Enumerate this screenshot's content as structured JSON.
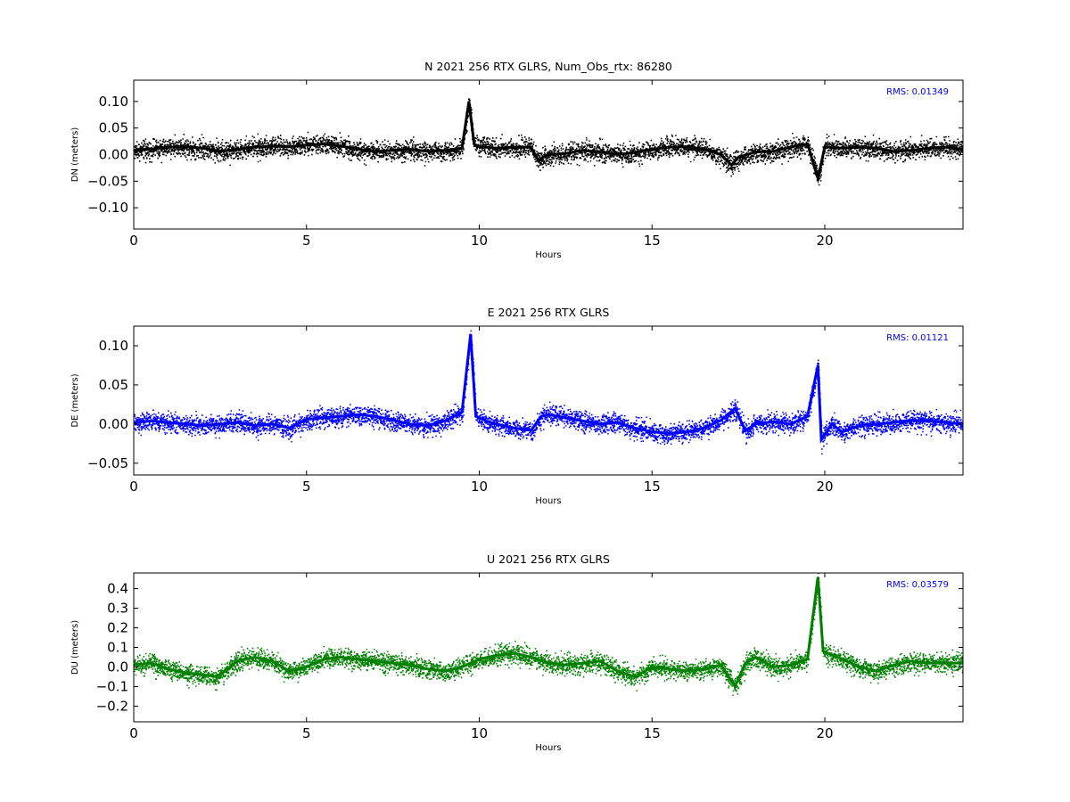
{
  "chart_data": [
    {
      "type": "scatter",
      "title": "N 2021 256 RTX  GLRS, Num_Obs_rtx: 86280",
      "xlabel": "Hours",
      "ylabel": "DN (meters)",
      "rms_label": "RMS:  0.01349",
      "color": "#000000",
      "xlim": [
        0,
        24
      ],
      "ylim": [
        -0.14,
        0.14
      ],
      "xticks": [
        0,
        5,
        10,
        15,
        20
      ],
      "xtick_labels": [
        "0",
        "5",
        "10",
        "15",
        "20"
      ],
      "yticks": [
        -0.1,
        -0.05,
        0.0,
        0.05,
        0.1
      ],
      "ytick_labels": [
        "−0.10",
        "−0.05",
        "0.00",
        "0.05",
        "0.10"
      ],
      "series": [
        {
          "points": [
            [
              0,
              0.008
            ],
            [
              0.5,
              0.01
            ],
            [
              1,
              0.014
            ],
            [
              1.5,
              0.015
            ],
            [
              2,
              0.012
            ],
            [
              2.5,
              0.006
            ],
            [
              3,
              0.01
            ],
            [
              3.5,
              0.014
            ],
            [
              4,
              0.016
            ],
            [
              4.5,
              0.015
            ],
            [
              5,
              0.018
            ],
            [
              5.5,
              0.02
            ],
            [
              6,
              0.016
            ],
            [
              6.5,
              0.01
            ],
            [
              7,
              0.006
            ],
            [
              7.5,
              0.008
            ],
            [
              8,
              0.01
            ],
            [
              8.5,
              0.006
            ],
            [
              9,
              0.008
            ],
            [
              9.5,
              0.012
            ],
            [
              9.7,
              0.1
            ],
            [
              9.85,
              0.02
            ],
            [
              10,
              0.015
            ],
            [
              10.5,
              0.012
            ],
            [
              11,
              0.014
            ],
            [
              11.5,
              0.014
            ],
            [
              11.7,
              -0.01
            ],
            [
              12,
              0.0
            ],
            [
              12.5,
              0.002
            ],
            [
              13,
              0.008
            ],
            [
              13.5,
              0.005
            ],
            [
              14,
              0.0
            ],
            [
              14.5,
              0.004
            ],
            [
              15,
              0.01
            ],
            [
              15.5,
              0.014
            ],
            [
              16,
              0.015
            ],
            [
              16.5,
              0.01
            ],
            [
              17,
              0.0
            ],
            [
              17.3,
              -0.02
            ],
            [
              17.5,
              -0.005
            ],
            [
              18,
              0.005
            ],
            [
              18.5,
              0.006
            ],
            [
              19,
              0.014
            ],
            [
              19.5,
              0.02
            ],
            [
              19.8,
              -0.045
            ],
            [
              20,
              0.015
            ],
            [
              20.5,
              0.012
            ],
            [
              21,
              0.014
            ],
            [
              21.5,
              0.012
            ],
            [
              22,
              0.006
            ],
            [
              22.5,
              0.008
            ],
            [
              23,
              0.012
            ],
            [
              23.5,
              0.014
            ],
            [
              24,
              0.01
            ]
          ]
        }
      ]
    },
    {
      "type": "scatter",
      "title": "E 2021 256 RTX  GLRS",
      "xlabel": "Hours",
      "ylabel": "DE (meters)",
      "rms_label": "RMS:  0.01121",
      "color": "#0000ff",
      "xlim": [
        0,
        24
      ],
      "ylim": [
        -0.065,
        0.125
      ],
      "xticks": [
        0,
        5,
        10,
        15,
        20
      ],
      "xtick_labels": [
        "0",
        "5",
        "10",
        "15",
        "20"
      ],
      "yticks": [
        -0.05,
        0.0,
        0.05,
        0.1
      ],
      "ytick_labels": [
        "−0.05",
        "0.00",
        "0.05",
        "0.10"
      ],
      "series": [
        {
          "points": [
            [
              0,
              0.002
            ],
            [
              0.5,
              0.004
            ],
            [
              1,
              0.002
            ],
            [
              1.5,
              0.0
            ],
            [
              2,
              -0.002
            ],
            [
              2.5,
              0.0
            ],
            [
              3,
              0.002
            ],
            [
              3.5,
              -0.002
            ],
            [
              4,
              0.0
            ],
            [
              4.5,
              -0.005
            ],
            [
              5,
              0.006
            ],
            [
              5.5,
              0.008
            ],
            [
              6,
              0.01
            ],
            [
              6.5,
              0.012
            ],
            [
              7,
              0.01
            ],
            [
              7.5,
              0.005
            ],
            [
              8,
              0.0
            ],
            [
              8.5,
              -0.002
            ],
            [
              9,
              0.004
            ],
            [
              9.5,
              0.015
            ],
            [
              9.75,
              0.115
            ],
            [
              9.9,
              0.01
            ],
            [
              10.2,
              0.004
            ],
            [
              10.5,
              0.0
            ],
            [
              11,
              -0.005
            ],
            [
              11.5,
              -0.008
            ],
            [
              11.8,
              0.01
            ],
            [
              12,
              0.012
            ],
            [
              12.5,
              0.008
            ],
            [
              13,
              0.004
            ],
            [
              13.5,
              0.0
            ],
            [
              14,
              0.002
            ],
            [
              14.5,
              -0.005
            ],
            [
              15,
              -0.01
            ],
            [
              15.5,
              -0.012
            ],
            [
              16,
              -0.01
            ],
            [
              16.5,
              -0.005
            ],
            [
              17,
              0.005
            ],
            [
              17.4,
              0.02
            ],
            [
              17.7,
              -0.008
            ],
            [
              18,
              0.0
            ],
            [
              18.5,
              0.003
            ],
            [
              19,
              0.0
            ],
            [
              19.5,
              0.01
            ],
            [
              19.8,
              0.075
            ],
            [
              19.9,
              -0.02
            ],
            [
              20.2,
              0.0
            ],
            [
              20.5,
              -0.01
            ],
            [
              21,
              -0.002
            ],
            [
              21.5,
              0.0
            ],
            [
              22,
              0.002
            ],
            [
              22.5,
              0.005
            ],
            [
              23,
              0.004
            ],
            [
              23.5,
              0.002
            ],
            [
              24,
              0.0
            ]
          ]
        }
      ]
    },
    {
      "type": "scatter",
      "title": "U 2021 256 RTX  GLRS",
      "xlabel": "Hours",
      "ylabel": "DU (meters)",
      "rms_label": "RMS:  0.03579",
      "color": "#008000",
      "xlim": [
        0,
        24
      ],
      "ylim": [
        -0.28,
        0.48
      ],
      "xticks": [
        0,
        5,
        10,
        15,
        20
      ],
      "xtick_labels": [
        "0",
        "5",
        "10",
        "15",
        "20"
      ],
      "yticks": [
        -0.2,
        -0.1,
        0.0,
        0.1,
        0.2,
        0.3,
        0.4
      ],
      "ytick_labels": [
        "−0.2",
        "−0.1",
        "0.0",
        "0.1",
        "0.2",
        "0.3",
        "0.4"
      ],
      "series": [
        {
          "points": [
            [
              0,
              0.01
            ],
            [
              0.5,
              0.02
            ],
            [
              1,
              -0.01
            ],
            [
              1.5,
              -0.03
            ],
            [
              2,
              -0.04
            ],
            [
              2.4,
              -0.05
            ],
            [
              3,
              0.03
            ],
            [
              3.5,
              0.05
            ],
            [
              4,
              0.03
            ],
            [
              4.5,
              -0.02
            ],
            [
              5,
              0.0
            ],
            [
              5.5,
              0.04
            ],
            [
              6,
              0.05
            ],
            [
              6.5,
              0.04
            ],
            [
              7,
              0.03
            ],
            [
              7.5,
              0.02
            ],
            [
              8,
              0.01
            ],
            [
              8.5,
              -0.01
            ],
            [
              9,
              -0.02
            ],
            [
              9.5,
              0.0
            ],
            [
              10,
              0.04
            ],
            [
              10.5,
              0.06
            ],
            [
              11,
              0.07
            ],
            [
              11.5,
              0.05
            ],
            [
              12,
              0.02
            ],
            [
              12.5,
              0.01
            ],
            [
              13,
              0.02
            ],
            [
              13.5,
              0.03
            ],
            [
              14,
              -0.02
            ],
            [
              14.5,
              -0.05
            ],
            [
              15,
              0.0
            ],
            [
              15.5,
              -0.01
            ],
            [
              16,
              -0.02
            ],
            [
              16.5,
              -0.01
            ],
            [
              17,
              0.01
            ],
            [
              17.4,
              -0.1
            ],
            [
              17.7,
              0.02
            ],
            [
              18,
              0.05
            ],
            [
              18.5,
              0.0
            ],
            [
              19,
              0.01
            ],
            [
              19.5,
              0.04
            ],
            [
              19.8,
              0.46
            ],
            [
              19.95,
              0.08
            ],
            [
              20.5,
              0.04
            ],
            [
              21,
              0.0
            ],
            [
              21.5,
              -0.02
            ],
            [
              22,
              0.01
            ],
            [
              22.5,
              0.03
            ],
            [
              23,
              0.02
            ],
            [
              23.5,
              0.02
            ],
            [
              24,
              0.02
            ]
          ]
        }
      ]
    }
  ]
}
